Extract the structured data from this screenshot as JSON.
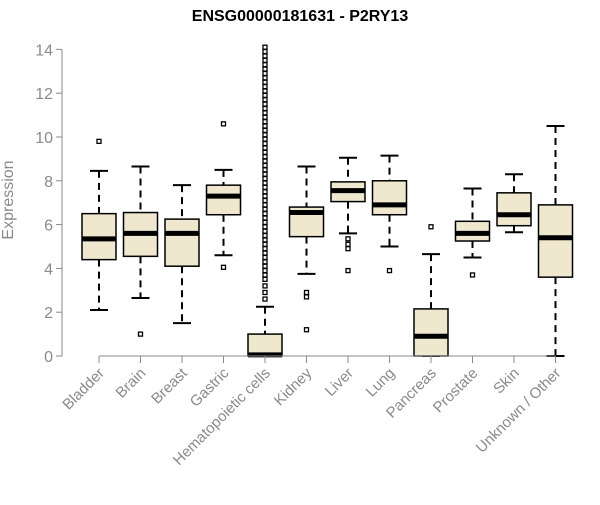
{
  "chart_data": {
    "type": "boxplot",
    "title": "ENSG00000181631 - P2RY13",
    "xlabel": "",
    "ylabel": "Expression",
    "ylim": [
      0,
      14.2
    ],
    "yticks": [
      0,
      2,
      4,
      6,
      8,
      10,
      12,
      14
    ],
    "categories": [
      "Bladder",
      "Brain",
      "Breast",
      "Gastric",
      "Hematopoietic cells",
      "Kidney",
      "Liver",
      "Lung",
      "Pancreas",
      "Prostate",
      "Skin",
      "Unknown / Other"
    ],
    "boxes": [
      {
        "category": "Bladder",
        "whisker_low": 2.1,
        "q1": 4.4,
        "median": 5.35,
        "q3": 6.5,
        "whisker_high": 8.45,
        "outliers": [
          9.8
        ]
      },
      {
        "category": "Brain",
        "whisker_low": 2.65,
        "q1": 4.55,
        "median": 5.6,
        "q3": 6.55,
        "whisker_high": 8.65,
        "outliers": [
          1.0
        ]
      },
      {
        "category": "Breast",
        "whisker_low": 1.5,
        "q1": 4.1,
        "median": 5.6,
        "q3": 6.25,
        "whisker_high": 7.8,
        "outliers": []
      },
      {
        "category": "Gastric",
        "whisker_low": 4.6,
        "q1": 6.45,
        "median": 7.3,
        "q3": 7.8,
        "whisker_high": 8.5,
        "outliers": [
          4.05,
          10.6
        ]
      },
      {
        "category": "Hematopoietic cells",
        "whisker_low": 0.0,
        "q1": 0.0,
        "median": 0.05,
        "q3": 1.0,
        "whisker_high": 2.25,
        "outliers": [
          2.6,
          2.9,
          3.2,
          3.5,
          3.7,
          3.9,
          4.1,
          4.3,
          4.5,
          4.7,
          4.9,
          5.1,
          5.3,
          5.5,
          5.7,
          5.9,
          6.1,
          6.3,
          6.5,
          6.7,
          6.9,
          7.1,
          7.3,
          7.5,
          7.7,
          7.9,
          8.1,
          8.3,
          8.5,
          8.7,
          8.9,
          9.1,
          9.3,
          9.5,
          9.7,
          9.9,
          10.1,
          10.3,
          10.5,
          10.7,
          10.9,
          11.1,
          11.3,
          11.5,
          11.7,
          11.9,
          12.1,
          12.3,
          12.5,
          12.7,
          12.9,
          13.1,
          13.3,
          13.5,
          13.7,
          13.9,
          14.1
        ]
      },
      {
        "category": "Kidney",
        "whisker_low": 3.75,
        "q1": 5.45,
        "median": 6.55,
        "q3": 6.8,
        "whisker_high": 8.65,
        "outliers": [
          1.2,
          2.7,
          2.9
        ]
      },
      {
        "category": "Liver",
        "whisker_low": 5.6,
        "q1": 7.05,
        "median": 7.55,
        "q3": 7.95,
        "whisker_high": 9.05,
        "outliers": [
          3.9,
          4.9,
          5.1,
          5.35
        ]
      },
      {
        "category": "Lung",
        "whisker_low": 5.0,
        "q1": 6.45,
        "median": 6.9,
        "q3": 8.0,
        "whisker_high": 9.15,
        "outliers": [
          3.9
        ]
      },
      {
        "category": "Pancreas",
        "whisker_low": 0.0,
        "q1": 0.0,
        "median": 0.9,
        "q3": 2.15,
        "whisker_high": 4.65,
        "outliers": [
          5.9
        ]
      },
      {
        "category": "Prostate",
        "whisker_low": 4.5,
        "q1": 5.25,
        "median": 5.6,
        "q3": 6.15,
        "whisker_high": 7.65,
        "outliers": [
          3.7
        ]
      },
      {
        "category": "Skin",
        "whisker_low": 5.65,
        "q1": 5.95,
        "median": 6.45,
        "q3": 7.45,
        "whisker_high": 8.3,
        "outliers": []
      },
      {
        "category": "Unknown / Other",
        "whisker_low": 0.0,
        "q1": 3.6,
        "median": 5.4,
        "q3": 6.9,
        "whisker_high": 10.5,
        "outliers": []
      }
    ]
  },
  "colors": {
    "box_fill": "#efe8cf",
    "stroke": "#000000",
    "axis": "#8a8a8a",
    "tick_label": "#8a8a8a"
  }
}
